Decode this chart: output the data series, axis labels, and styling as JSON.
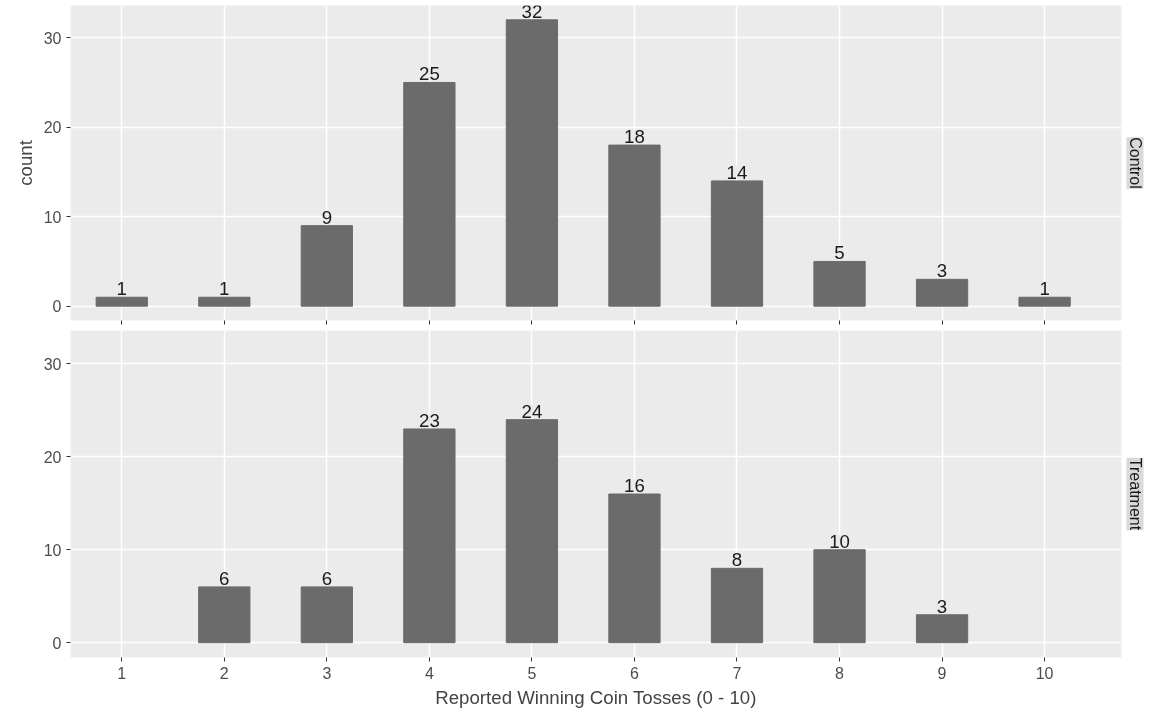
{
  "chart_data": [
    {
      "type": "bar",
      "title": "Control",
      "ylabel": "count",
      "x": [
        1,
        2,
        3,
        4,
        5,
        6,
        7,
        8,
        9,
        10
      ],
      "series": [
        {
          "color": "#6b6b6b",
          "values": [
            1,
            1,
            9,
            25,
            32,
            18,
            14,
            5,
            3,
            1
          ]
        }
      ],
      "xlim": [
        0.5,
        10.75
      ],
      "xticks": [
        1,
        2,
        3,
        4,
        5,
        6,
        7,
        8,
        9,
        10
      ],
      "ylim": [
        -1.6,
        33.6
      ],
      "yticks": [
        0,
        10,
        20,
        30
      ],
      "grid": true,
      "data_labels": true,
      "tick_labels": "y"
    },
    {
      "type": "bar",
      "title": "Treatment",
      "xlabel": "Reported Winning Coin Tosses (0 - 10)",
      "series": [
        {
          "color": "#6b6b6b",
          "x": [
            2,
            3,
            4,
            5,
            6,
            7,
            8,
            9
          ],
          "values": [
            6,
            6,
            23,
            24,
            16,
            8,
            10,
            3
          ]
        }
      ],
      "xlim": [
        0.5,
        10.75
      ],
      "xticks": [
        1,
        2,
        3,
        4,
        5,
        6,
        7,
        8,
        9,
        10
      ],
      "ylim": [
        -1.6,
        33.6
      ],
      "yticks": [
        0,
        10,
        20,
        30
      ],
      "grid": true,
      "data_labels": true
    }
  ]
}
